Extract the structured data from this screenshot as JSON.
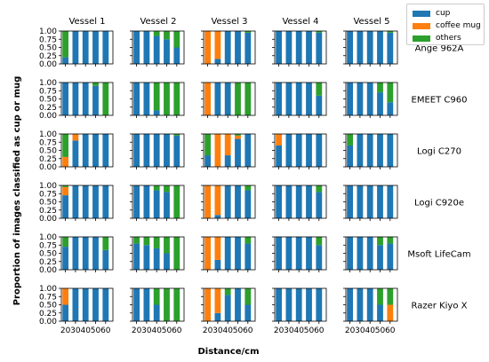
{
  "chart_data": {
    "type": "bar",
    "stacked": true,
    "layout": "grid of small multiples (6 rows x 5 columns)",
    "xlabel": "Distance/cm",
    "ylabel": "Proportion of images classified as cup or mug",
    "x_ticks": [
      "20",
      "30",
      "40",
      "50",
      "60"
    ],
    "y_ticks": [
      "0.00",
      "0.25",
      "0.50",
      "0.75",
      "1.00"
    ],
    "ylim": [
      0,
      1
    ],
    "grid": false,
    "legend_position": "top-right",
    "columns": [
      "Vessel 1",
      "Vessel 2",
      "Vessel 3",
      "Vessel 4",
      "Vessel 5"
    ],
    "rows": [
      "Ange 962A",
      "EMEET C960",
      "Logi C270",
      "Logi C920e",
      "Msoft LifeCam",
      "Razer Kiyo X"
    ],
    "series": [
      {
        "name": "cup",
        "color": "#1f77b4"
      },
      {
        "name": "coffee mug",
        "color": "#ff7f0e"
      },
      {
        "name": "others",
        "color": "#2ca02c"
      }
    ],
    "note": "each panel: per distance [cup, coffee mug, others] proportions",
    "panels": [
      [
        [
          [
            0.2,
            0,
            0.8
          ],
          [
            1,
            0,
            0
          ],
          [
            1,
            0,
            0
          ],
          [
            1,
            0,
            0
          ],
          [
            1,
            0,
            0
          ]
        ],
        [
          [
            1,
            0,
            0
          ],
          [
            1,
            0,
            0
          ],
          [
            0.85,
            0,
            0.15
          ],
          [
            0.75,
            0,
            0.25
          ],
          [
            0.5,
            0,
            0.5
          ]
        ],
        [
          [
            0,
            1,
            0
          ],
          [
            0.15,
            0.85,
            0
          ],
          [
            1,
            0,
            0
          ],
          [
            1,
            0,
            0
          ],
          [
            0.95,
            0,
            0.05
          ]
        ],
        [
          [
            1,
            0,
            0
          ],
          [
            1,
            0,
            0
          ],
          [
            1,
            0,
            0
          ],
          [
            1,
            0,
            0
          ],
          [
            0.95,
            0,
            0.05
          ]
        ],
        [
          [
            1,
            0,
            0
          ],
          [
            1,
            0,
            0
          ],
          [
            1,
            0,
            0
          ],
          [
            1,
            0,
            0
          ],
          [
            0.95,
            0,
            0.05
          ]
        ]
      ],
      [
        [
          [
            1,
            0,
            0
          ],
          [
            1,
            0,
            0
          ],
          [
            1,
            0,
            0
          ],
          [
            0.9,
            0,
            0.1
          ],
          [
            0,
            0,
            1
          ]
        ],
        [
          [
            1,
            0,
            0
          ],
          [
            1,
            0,
            0
          ],
          [
            0.15,
            0,
            0.85
          ],
          [
            0,
            0,
            1
          ],
          [
            0,
            0,
            1
          ]
        ],
        [
          [
            0,
            1,
            0
          ],
          [
            1,
            0,
            0
          ],
          [
            1,
            0,
            0
          ],
          [
            0,
            0,
            1
          ],
          [
            0,
            0,
            1
          ]
        ],
        [
          [
            1,
            0,
            0
          ],
          [
            1,
            0,
            0
          ],
          [
            1,
            0,
            0
          ],
          [
            1,
            0,
            0
          ],
          [
            0.6,
            0,
            0.4
          ]
        ],
        [
          [
            1,
            0,
            0
          ],
          [
            1,
            0,
            0
          ],
          [
            1,
            0,
            0
          ],
          [
            0.7,
            0,
            0.3
          ],
          [
            0.4,
            0,
            0.6
          ]
        ]
      ],
      [
        [
          [
            0,
            0.3,
            0.7
          ],
          [
            0.8,
            0.2,
            0
          ],
          [
            1,
            0,
            0
          ],
          [
            1,
            0,
            0
          ],
          [
            1,
            0,
            0
          ]
        ],
        [
          [
            1,
            0,
            0
          ],
          [
            1,
            0,
            0
          ],
          [
            1,
            0,
            0
          ],
          [
            1,
            0,
            0
          ],
          [
            0.95,
            0,
            0.05
          ]
        ],
        [
          [
            0.35,
            0,
            0.65
          ],
          [
            0,
            1,
            0
          ],
          [
            0.35,
            0.65,
            0
          ],
          [
            0.85,
            0.1,
            0.05
          ],
          [
            1,
            0,
            0
          ]
        ],
        [
          [
            0.65,
            0.35,
            0
          ],
          [
            1,
            0,
            0
          ],
          [
            1,
            0,
            0
          ],
          [
            1,
            0,
            0
          ],
          [
            1,
            0,
            0
          ]
        ],
        [
          [
            0.65,
            0,
            0.35
          ],
          [
            1,
            0,
            0
          ],
          [
            1,
            0,
            0
          ],
          [
            1,
            0,
            0
          ],
          [
            1,
            0,
            0
          ]
        ]
      ],
      [
        [
          [
            0.7,
            0.25,
            0.05
          ],
          [
            1,
            0,
            0
          ],
          [
            1,
            0,
            0
          ],
          [
            1,
            0,
            0
          ],
          [
            1,
            0,
            0
          ]
        ],
        [
          [
            1,
            0,
            0
          ],
          [
            1,
            0,
            0
          ],
          [
            0.85,
            0,
            0.15
          ],
          [
            0.8,
            0,
            0.2
          ],
          [
            0,
            0,
            1
          ]
        ],
        [
          [
            0,
            1,
            0
          ],
          [
            0.1,
            0.9,
            0
          ],
          [
            1,
            0,
            0
          ],
          [
            1,
            0,
            0
          ],
          [
            0.85,
            0,
            0.15
          ]
        ],
        [
          [
            1,
            0,
            0
          ],
          [
            1,
            0,
            0
          ],
          [
            1,
            0,
            0
          ],
          [
            1,
            0,
            0
          ],
          [
            0.8,
            0,
            0.2
          ]
        ],
        [
          [
            1,
            0,
            0
          ],
          [
            1,
            0,
            0
          ],
          [
            1,
            0,
            0
          ],
          [
            1,
            0,
            0
          ],
          [
            1,
            0,
            0
          ]
        ]
      ],
      [
        [
          [
            0.7,
            0,
            0.3
          ],
          [
            1,
            0,
            0
          ],
          [
            1,
            0,
            0
          ],
          [
            1,
            0,
            0
          ],
          [
            0.6,
            0,
            0.4
          ]
        ],
        [
          [
            0.8,
            0,
            0.2
          ],
          [
            0.75,
            0,
            0.25
          ],
          [
            0.65,
            0,
            0.35
          ],
          [
            0.5,
            0,
            0.5
          ],
          [
            0,
            0,
            1
          ]
        ],
        [
          [
            0,
            1,
            0
          ],
          [
            0.3,
            0.7,
            0
          ],
          [
            1,
            0,
            0
          ],
          [
            1,
            0,
            0
          ],
          [
            0.8,
            0,
            0.2
          ]
        ],
        [
          [
            1,
            0,
            0
          ],
          [
            1,
            0,
            0
          ],
          [
            1,
            0,
            0
          ],
          [
            1,
            0,
            0
          ],
          [
            0.75,
            0,
            0.25
          ]
        ],
        [
          [
            1,
            0,
            0
          ],
          [
            1,
            0,
            0
          ],
          [
            1,
            0,
            0
          ],
          [
            0.75,
            0,
            0.25
          ],
          [
            0.8,
            0,
            0.2
          ]
        ]
      ],
      [
        [
          [
            0.5,
            0.5,
            0
          ],
          [
            1,
            0,
            0
          ],
          [
            1,
            0,
            0
          ],
          [
            1,
            0,
            0
          ],
          [
            1,
            0,
            0
          ]
        ],
        [
          [
            1,
            0,
            0
          ],
          [
            1,
            0,
            0
          ],
          [
            0.5,
            0,
            0.5
          ],
          [
            0,
            0,
            1
          ],
          [
            0,
            0,
            1
          ]
        ],
        [
          [
            0,
            1,
            0
          ],
          [
            0.25,
            0.75,
            0
          ],
          [
            0.8,
            0,
            0.2
          ],
          [
            1,
            0,
            0
          ],
          [
            0.5,
            0,
            0.5
          ]
        ],
        [
          [
            1,
            0,
            0
          ],
          [
            1,
            0,
            0
          ],
          [
            1,
            0,
            0
          ],
          [
            1,
            0,
            0
          ],
          [
            1,
            0,
            0
          ]
        ],
        [
          [
            1,
            0,
            0
          ],
          [
            1,
            0,
            0
          ],
          [
            1,
            0,
            0
          ],
          [
            0.5,
            0,
            0.5
          ],
          [
            0,
            0.5,
            0.5
          ]
        ]
      ]
    ]
  }
}
